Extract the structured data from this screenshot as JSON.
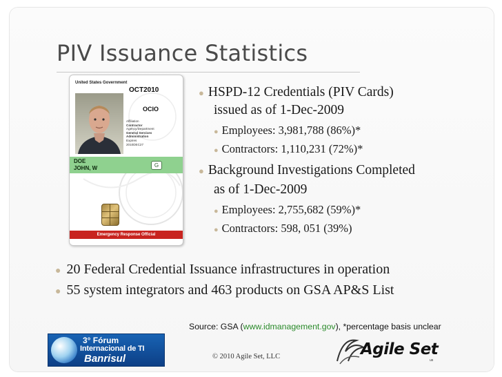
{
  "slide": {
    "title": "PIV Issuance Statistics"
  },
  "card": {
    "gov": "United States Government",
    "date": "OCT2010",
    "agency": "OCIO",
    "details": [
      "Affiliation",
      "Contractor",
      "Agency/Department",
      "General Services",
      "Administration",
      "Expires",
      "2010DEC27"
    ],
    "name_last": "DOE",
    "name_first": "JOHN, W",
    "badge": "G",
    "footer": "Emergency Response Official"
  },
  "bullets": {
    "hspd_line1": "HSPD-12 Credentials (PIV Cards)",
    "hspd_line2": "issued as of 1-Dec-2009",
    "hspd_employees": "Employees: 3,981,788 (86%)*",
    "hspd_contractors": "Contractors: 1,110,231 (72%)*",
    "bi_line1": "Background Investigations Completed",
    "bi_line2": "as of 1-Dec-2009",
    "bi_employees": "Employees: 2,755,682 (59%)*",
    "bi_contractors": "Contractors: 598, 051 (39%)",
    "bottom1": "20 Federal Credential Issuance infrastructures in operation",
    "bottom2": "55 system integrators and 463 products on GSA AP&S List"
  },
  "source": {
    "prefix": "Source: GSA (",
    "link": "www.idmanagement.gov",
    "suffix": "), *percentage basis unclear"
  },
  "footer": {
    "forum_line1": "3° Fórum",
    "forum_line2": "Internacional de TI",
    "forum_line3": "Banrisul",
    "copyright": "© 2010 Agile Set, LLC",
    "agile_logo": "Agile Set",
    "agile_suffix": "us"
  },
  "colors": {
    "bullet": "#c8b89a",
    "link": "#2a8a2a",
    "title": "#4a4a4a"
  }
}
